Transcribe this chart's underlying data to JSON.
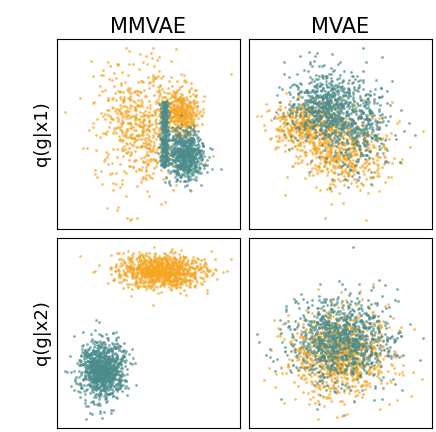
{
  "title_col1": "MMVAE",
  "title_col2": "MVAE",
  "ylabel_row1": "q(g|x1)",
  "ylabel_row2": "q(g|x2)",
  "color_orange": "#F5A623",
  "color_teal": "#4A8C8C",
  "seed": 42,
  "n_points": 1000,
  "title_fontsize": 15,
  "ylabel_fontsize": 13
}
